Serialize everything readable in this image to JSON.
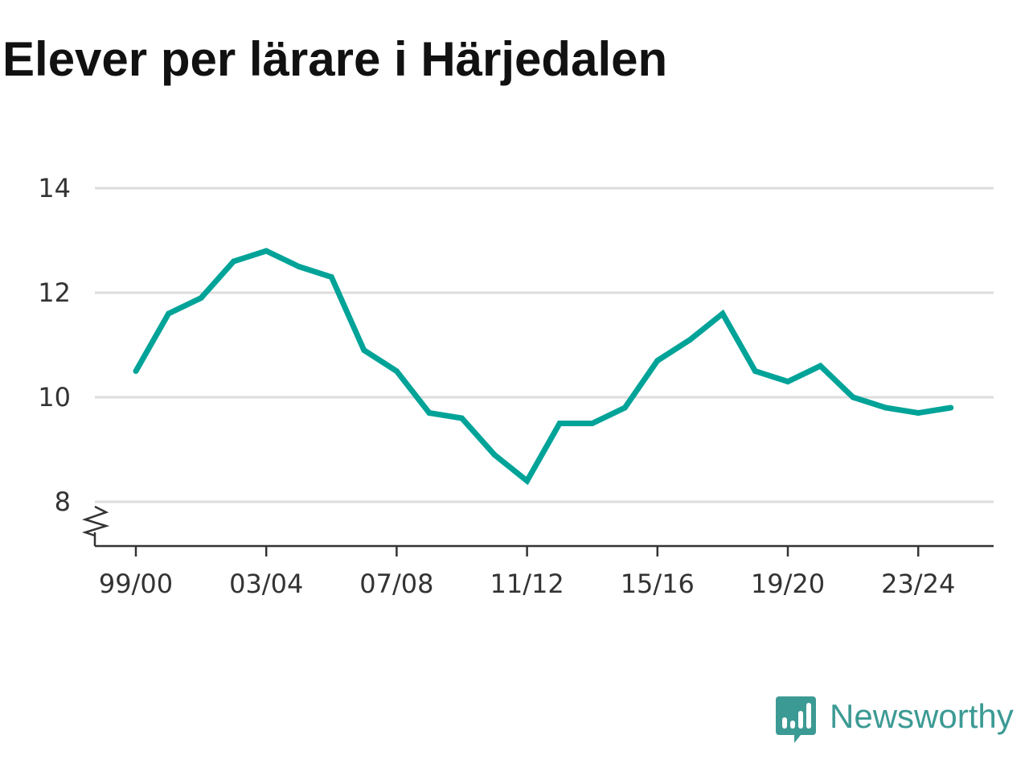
{
  "title": "Elever per lärare i Härjedalen",
  "brand": {
    "name": "Newsworthy",
    "icon": "newsworthy-logo-icon"
  },
  "colors": {
    "line": "#00a398",
    "grid": "#dddddd",
    "axis": "#333333",
    "brand": "#3c9a94"
  },
  "chart_data": {
    "type": "line",
    "title": "Elever per lärare i Härjedalen",
    "xlabel": "",
    "ylabel": "",
    "x": [
      "99/00",
      "00/01",
      "01/02",
      "02/03",
      "03/04",
      "04/05",
      "05/06",
      "06/07",
      "07/08",
      "08/09",
      "09/10",
      "10/11",
      "11/12",
      "12/13",
      "13/14",
      "14/15",
      "15/16",
      "16/17",
      "17/18",
      "18/19",
      "19/20",
      "20/21",
      "21/22",
      "22/23",
      "23/24",
      "24/25"
    ],
    "series": [
      {
        "values": [
          10.5,
          11.6,
          11.9,
          12.6,
          12.8,
          12.5,
          12.3,
          10.9,
          10.5,
          9.7,
          9.6,
          8.9,
          8.4,
          9.5,
          9.5,
          9.8,
          10.7,
          11.1,
          11.6,
          10.5,
          10.3,
          10.6,
          10.0,
          9.8,
          9.7,
          9.8
        ]
      }
    ],
    "x_tick_labels": [
      "99/00",
      "03/04",
      "07/08",
      "11/12",
      "15/16",
      "19/20",
      "23/24"
    ],
    "y_ticks": [
      8,
      10,
      12,
      14
    ],
    "ylim": [
      7.2,
      14
    ],
    "y_axis_break": true,
    "grid": true,
    "legend": "none"
  }
}
